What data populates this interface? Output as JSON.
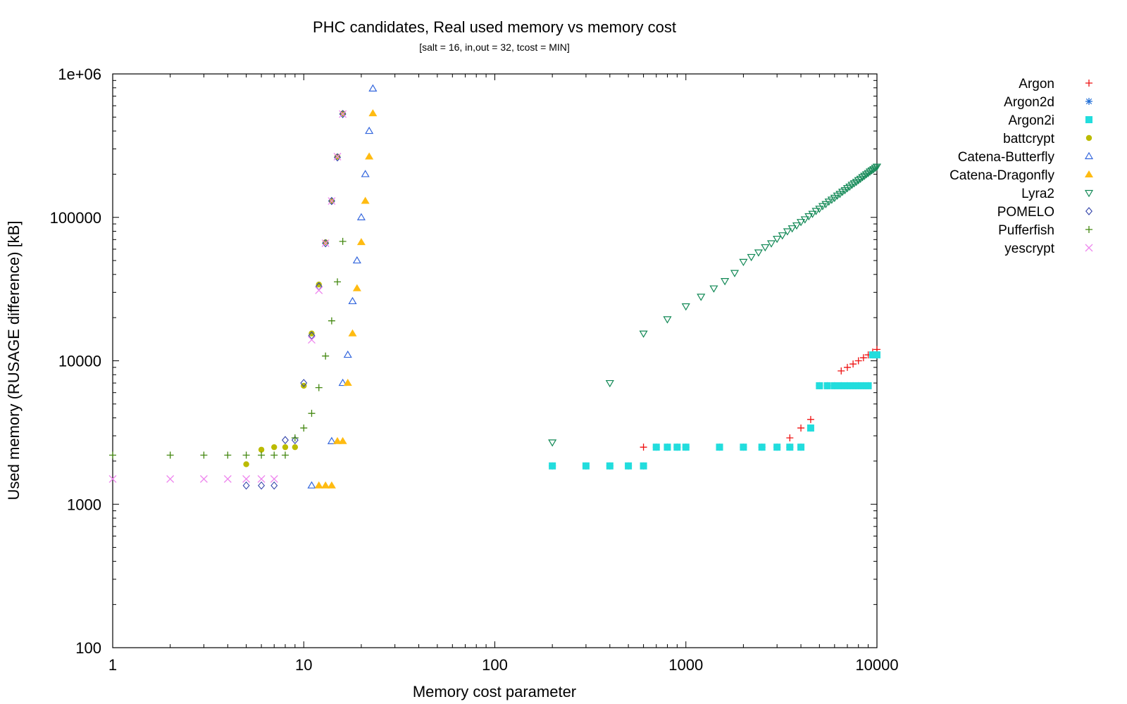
{
  "chart_data": {
    "type": "scatter",
    "title": "PHC candidates, Real used memory vs memory cost",
    "subtitle": "[salt = 16, in,out = 32, tcost = MIN]",
    "xlabel": "Memory cost parameter",
    "ylabel": "Used memory (RUSAGE difference) [kB]",
    "xscale": "log",
    "yscale": "log",
    "xlim": [
      1,
      10000
    ],
    "ylim": [
      100,
      1000000
    ],
    "xticks": [
      {
        "v": 1,
        "label": "1"
      },
      {
        "v": 10,
        "label": "10"
      },
      {
        "v": 100,
        "label": "100"
      },
      {
        "v": 1000,
        "label": "1000"
      },
      {
        "v": 10000,
        "label": "10000"
      }
    ],
    "yticks": [
      {
        "v": 100,
        "label": "100"
      },
      {
        "v": 1000,
        "label": "1000"
      },
      {
        "v": 10000,
        "label": "10000"
      },
      {
        "v": 100000,
        "label": "100000"
      },
      {
        "v": 1000000,
        "label": "1e+06"
      }
    ],
    "legend_position": "outside right",
    "series": [
      {
        "name": "Argon",
        "color": "#ee1111",
        "marker": "plus",
        "points": [
          [
            600,
            2500
          ],
          [
            3500,
            2900
          ],
          [
            4000,
            3400
          ],
          [
            4500,
            3900
          ],
          [
            6500,
            8500
          ],
          [
            7000,
            9000
          ],
          [
            7500,
            9500
          ],
          [
            8000,
            10000
          ],
          [
            8500,
            10500
          ],
          [
            9000,
            11000
          ],
          [
            9500,
            11500
          ],
          [
            10000,
            12000
          ]
        ]
      },
      {
        "name": "Argon2d",
        "color": "#1a6bd6",
        "marker": "star",
        "points": [
          [
            200,
            1850
          ],
          [
            300,
            1850
          ],
          [
            400,
            1850
          ],
          [
            500,
            1850
          ],
          [
            600,
            1850
          ],
          [
            700,
            2500
          ],
          [
            800,
            2500
          ],
          [
            900,
            2500
          ],
          [
            1000,
            2500
          ],
          [
            1500,
            2500
          ],
          [
            2000,
            2500
          ],
          [
            2500,
            2500
          ],
          [
            3000,
            2500
          ],
          [
            3500,
            2500
          ],
          [
            4000,
            2500
          ],
          [
            4500,
            3400
          ],
          [
            5000,
            6700
          ],
          [
            5500,
            6700
          ],
          [
            6000,
            6700
          ],
          [
            6500,
            6700
          ],
          [
            7000,
            6700
          ],
          [
            7500,
            6700
          ],
          [
            8000,
            6700
          ],
          [
            8500,
            6700
          ],
          [
            9000,
            6700
          ],
          [
            9500,
            11000
          ],
          [
            10000,
            11000
          ]
        ]
      },
      {
        "name": "Argon2i",
        "color": "#22dddd",
        "marker": "square",
        "points": [
          [
            200,
            1850
          ],
          [
            300,
            1850
          ],
          [
            400,
            1850
          ],
          [
            500,
            1850
          ],
          [
            600,
            1850
          ],
          [
            700,
            2500
          ],
          [
            800,
            2500
          ],
          [
            900,
            2500
          ],
          [
            1000,
            2500
          ],
          [
            1500,
            2500
          ],
          [
            2000,
            2500
          ],
          [
            2500,
            2500
          ],
          [
            3000,
            2500
          ],
          [
            3500,
            2500
          ],
          [
            4000,
            2500
          ],
          [
            4500,
            3400
          ],
          [
            5000,
            6700
          ],
          [
            5500,
            6700
          ],
          [
            6000,
            6700
          ],
          [
            6500,
            6700
          ],
          [
            7000,
            6700
          ],
          [
            7500,
            6700
          ],
          [
            8000,
            6700
          ],
          [
            8500,
            6700
          ],
          [
            9000,
            6700
          ],
          [
            9500,
            11000
          ],
          [
            10000,
            11000
          ]
        ]
      },
      {
        "name": "battcrypt",
        "color": "#bbbb00",
        "marker": "circle",
        "points": [
          [
            5,
            1900
          ],
          [
            6,
            2400
          ],
          [
            7,
            2500
          ],
          [
            8,
            2500
          ],
          [
            9,
            2500
          ],
          [
            10,
            6700
          ],
          [
            11,
            15500
          ],
          [
            12,
            34000
          ],
          [
            13,
            67000
          ],
          [
            14,
            130000
          ],
          [
            15,
            265000
          ],
          [
            16,
            530000
          ]
        ]
      },
      {
        "name": "Catena-Butterfly",
        "color": "#3366dd",
        "marker": "triangle",
        "points": [
          [
            11,
            1350
          ],
          [
            14,
            2750
          ],
          [
            16,
            7000
          ],
          [
            17,
            11000
          ],
          [
            18,
            26000
          ],
          [
            19,
            50000
          ],
          [
            20,
            100000
          ],
          [
            21,
            200000
          ],
          [
            22,
            400000
          ],
          [
            23,
            790000
          ]
        ]
      },
      {
        "name": "Catena-Dragonfly",
        "color": "#ffbb11",
        "marker": "filledtriangle",
        "points": [
          [
            12,
            1350
          ],
          [
            13,
            1350
          ],
          [
            14,
            1350
          ],
          [
            15,
            2750
          ],
          [
            16,
            2750
          ],
          [
            17,
            7000
          ],
          [
            18,
            15500
          ],
          [
            19,
            32000
          ],
          [
            20,
            67000
          ],
          [
            21,
            130000
          ],
          [
            22,
            265000
          ],
          [
            23,
            530000
          ]
        ]
      },
      {
        "name": "Lyra2",
        "color": "#118855",
        "marker": "invtriangle",
        "points": [
          [
            200,
            2700
          ],
          [
            400,
            7000
          ],
          [
            600,
            15500
          ],
          [
            800,
            19500
          ],
          [
            1000,
            24000
          ],
          [
            1200,
            28000
          ],
          [
            1400,
            32000
          ],
          [
            1600,
            36000
          ],
          [
            1800,
            41000
          ],
          [
            2000,
            49000
          ],
          [
            2200,
            53000
          ],
          [
            2400,
            57000
          ],
          [
            2600,
            62000
          ],
          [
            2800,
            66000
          ],
          [
            3000,
            71000
          ],
          [
            3200,
            75000
          ],
          [
            3400,
            80000
          ],
          [
            3600,
            84000
          ],
          [
            3800,
            88000
          ],
          [
            4000,
            93000
          ],
          [
            4200,
            97000
          ],
          [
            4400,
            102000
          ],
          [
            4600,
            106000
          ],
          [
            4800,
            111000
          ],
          [
            5000,
            115000
          ],
          [
            5200,
            120000
          ],
          [
            5400,
            124000
          ],
          [
            5600,
            129000
          ],
          [
            5800,
            133000
          ],
          [
            6000,
            137000
          ],
          [
            6200,
            142000
          ],
          [
            6400,
            146000
          ],
          [
            6600,
            151000
          ],
          [
            6800,
            155000
          ],
          [
            7000,
            160000
          ],
          [
            7200,
            164000
          ],
          [
            7400,
            169000
          ],
          [
            7600,
            173000
          ],
          [
            7800,
            177000
          ],
          [
            8000,
            182000
          ],
          [
            8200,
            186000
          ],
          [
            8400,
            191000
          ],
          [
            8600,
            195000
          ],
          [
            8800,
            200000
          ],
          [
            9000,
            204000
          ],
          [
            9200,
            209000
          ],
          [
            9400,
            213000
          ],
          [
            9600,
            217000
          ],
          [
            9800,
            222000
          ],
          [
            10000,
            226000
          ]
        ]
      },
      {
        "name": "POMELO",
        "color": "#3344aa",
        "marker": "diamond",
        "points": [
          [
            5,
            1350
          ],
          [
            6,
            1350
          ],
          [
            7,
            1350
          ],
          [
            8,
            2800
          ],
          [
            9,
            2800
          ],
          [
            10,
            7000
          ],
          [
            11,
            15000
          ],
          [
            12,
            33000
          ],
          [
            13,
            66000
          ],
          [
            14,
            130000
          ],
          [
            15,
            262000
          ],
          [
            16,
            525000
          ]
        ]
      },
      {
        "name": "Pufferfish",
        "color": "#448811",
        "marker": "plus",
        "points": [
          [
            1,
            2200
          ],
          [
            2,
            2200
          ],
          [
            3,
            2200
          ],
          [
            4,
            2200
          ],
          [
            5,
            2200
          ],
          [
            6,
            2200
          ],
          [
            7,
            2200
          ],
          [
            8,
            2200
          ],
          [
            9,
            2900
          ],
          [
            10,
            3400
          ],
          [
            11,
            4300
          ],
          [
            12,
            6500
          ],
          [
            13,
            10800
          ],
          [
            14,
            19000
          ],
          [
            15,
            35500
          ],
          [
            16,
            68000
          ]
        ]
      },
      {
        "name": "yescrypt",
        "color": "#ee88ee",
        "marker": "cross",
        "points": [
          [
            1,
            1500
          ],
          [
            2,
            1500
          ],
          [
            3,
            1500
          ],
          [
            4,
            1500
          ],
          [
            5,
            1500
          ],
          [
            6,
            1500
          ],
          [
            7,
            1500
          ],
          [
            11,
            14000
          ],
          [
            12,
            31000
          ],
          [
            13,
            66000
          ],
          [
            14,
            130000
          ],
          [
            15,
            265000
          ],
          [
            16,
            525000
          ]
        ]
      }
    ]
  }
}
